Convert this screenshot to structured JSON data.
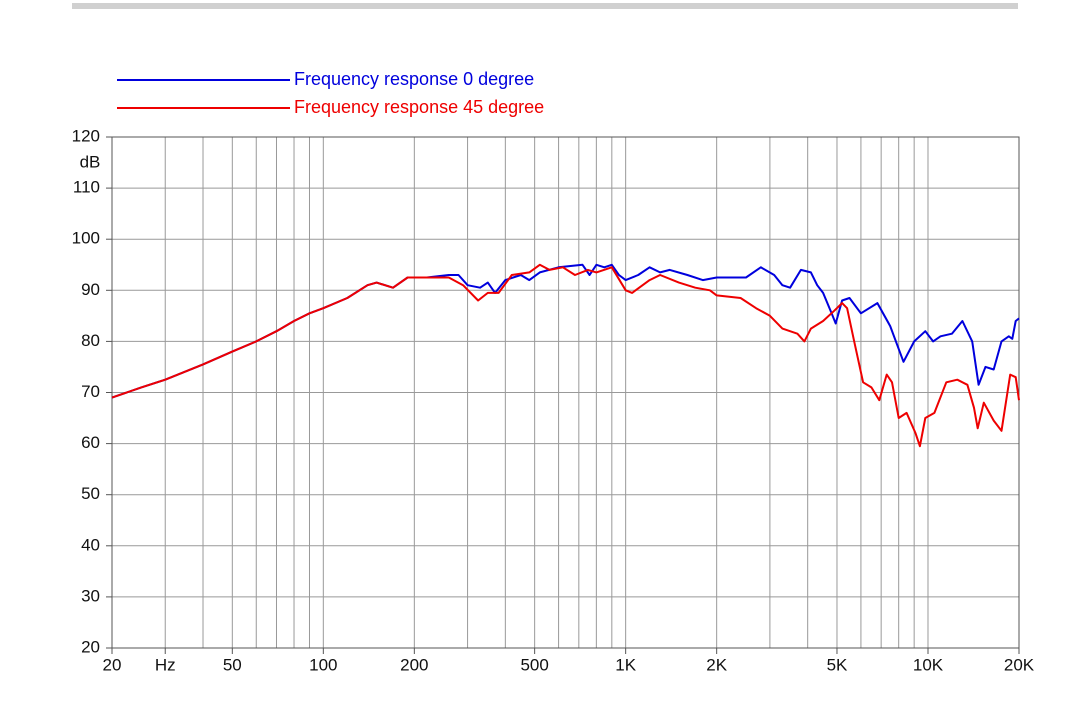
{
  "chart_data": {
    "type": "line",
    "log_x": true,
    "grid": true,
    "y_unit": "dB",
    "xlim": [
      20,
      20000
    ],
    "ylim": [
      20,
      120
    ],
    "yticks": [
      20,
      30,
      40,
      50,
      60,
      70,
      80,
      90,
      100,
      110,
      120
    ],
    "xticks": [
      20,
      {
        "value": 30,
        "label": "Hz"
      },
      50,
      100,
      200,
      500,
      {
        "value": 1000,
        "label": "1K"
      },
      {
        "value": 2000,
        "label": "2K"
      },
      {
        "value": 5000,
        "label": "5K"
      },
      {
        "value": 10000,
        "label": "10K"
      },
      {
        "value": 20000,
        "label": "20K"
      }
    ],
    "xgrid": [
      20,
      30,
      40,
      50,
      60,
      70,
      80,
      90,
      100,
      200,
      300,
      400,
      500,
      600,
      700,
      800,
      900,
      1000,
      2000,
      3000,
      4000,
      5000,
      6000,
      7000,
      8000,
      9000,
      10000,
      20000
    ],
    "series": [
      {
        "name": "Frequency response 0 degree",
        "color": "#0000dd",
        "x": [
          20,
          25,
          30,
          40,
          50,
          60,
          70,
          80,
          90,
          100,
          120,
          140,
          150,
          170,
          190,
          220,
          260,
          280,
          300,
          330,
          350,
          370,
          400,
          450,
          480,
          520,
          600,
          720,
          760,
          800,
          850,
          900,
          950,
          1000,
          1100,
          1200,
          1300,
          1400,
          1600,
          1800,
          2000,
          2500,
          2800,
          3100,
          3300,
          3500,
          3800,
          4100,
          4300,
          4500,
          4800,
          4950,
          5200,
          5500,
          6000,
          6800,
          7500,
          8300,
          9000,
          9800,
          10400,
          11000,
          12000,
          13000,
          14000,
          14700,
          15500,
          16500,
          17500,
          18500,
          19000,
          19500,
          20000
        ],
        "values": [
          69,
          71,
          72.5,
          75.5,
          78,
          80,
          82,
          84,
          85.5,
          86.5,
          88.5,
          91,
          91.5,
          90.5,
          92.5,
          92.5,
          93,
          93,
          91,
          90.5,
          91.5,
          89.5,
          92,
          93,
          92,
          93.5,
          94.5,
          95,
          93,
          95,
          94.5,
          95,
          93,
          92,
          93,
          94.5,
          93.5,
          94,
          93,
          92,
          92.5,
          92.5,
          94.5,
          93,
          91,
          90.5,
          94,
          93.5,
          91,
          89.5,
          85.5,
          83.5,
          88,
          88.5,
          85.5,
          87.5,
          83,
          76,
          80,
          82,
          80,
          81,
          81.5,
          84,
          80,
          71.5,
          75,
          74.5,
          80,
          81,
          80.5,
          84,
          84.5
        ]
      },
      {
        "name": "Frequency response 45 degree",
        "color": "#ee0000",
        "x": [
          20,
          25,
          30,
          40,
          50,
          60,
          70,
          80,
          90,
          100,
          120,
          140,
          150,
          170,
          190,
          220,
          260,
          290,
          325,
          350,
          380,
          420,
          480,
          520,
          560,
          620,
          680,
          750,
          800,
          900,
          1000,
          1050,
          1200,
          1300,
          1500,
          1700,
          1900,
          2000,
          2400,
          2700,
          3000,
          3300,
          3700,
          3900,
          4100,
          4500,
          4900,
          5200,
          5400,
          5700,
          6100,
          6500,
          6900,
          7300,
          7600,
          8000,
          8500,
          9100,
          9400,
          9800,
          10500,
          11500,
          12500,
          13500,
          14200,
          14600,
          15300,
          16500,
          17500,
          18700,
          19500,
          20000
        ],
        "values": [
          69,
          71,
          72.5,
          75.5,
          78,
          80,
          82,
          84,
          85.5,
          86.5,
          88.5,
          91,
          91.5,
          90.5,
          92.5,
          92.5,
          92.5,
          91,
          88,
          89.5,
          89.5,
          93,
          93.5,
          95,
          94,
          94.5,
          93,
          94,
          93.5,
          94.5,
          90,
          89.5,
          92,
          93,
          91.5,
          90.5,
          90,
          89,
          88.5,
          86.5,
          85,
          82.5,
          81.5,
          80,
          82.5,
          84,
          86,
          87.5,
          86.5,
          80,
          72,
          71,
          68.5,
          73.5,
          72,
          65,
          66,
          62,
          59.5,
          65,
          66,
          72,
          72.5,
          71.5,
          67,
          63,
          68,
          64.5,
          62.5,
          73.5,
          73,
          68.5
        ]
      }
    ]
  }
}
